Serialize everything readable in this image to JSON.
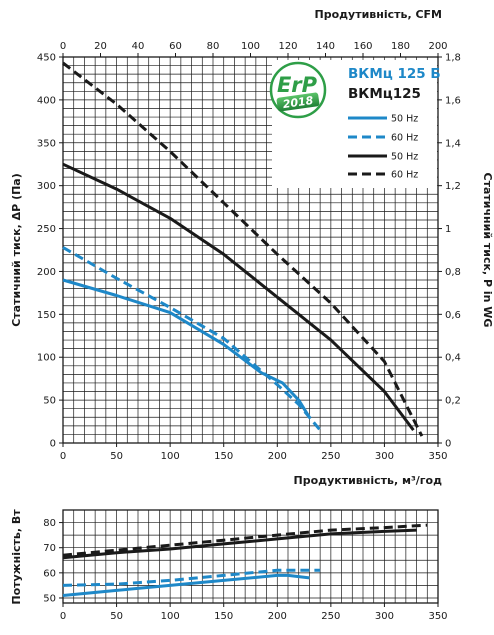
{
  "chart_data": [
    {
      "type": "line",
      "title": "",
      "xlabel": "Продуктивність, м³/год",
      "ylabel": "Статичний тиск, ΔP (Па)",
      "x2label": "Продутивність, CFM",
      "y2label": "Статичний тиск, P in WG",
      "xlim": [
        0,
        350
      ],
      "ylim": [
        0,
        450
      ],
      "x2lim": [
        0,
        200
      ],
      "y2lim": [
        0,
        1.8
      ],
      "x_ticks": [
        "0",
        "50",
        "100",
        "150",
        "200",
        "250",
        "300",
        "350"
      ],
      "y_ticks": [
        "0",
        "50",
        "100",
        "150",
        "200",
        "250",
        "300",
        "350",
        "400",
        "450"
      ],
      "x2_ticks": [
        "0",
        "20",
        "40",
        "60",
        "80",
        "100",
        "120",
        "140",
        "160",
        "180",
        "200"
      ],
      "y2_ticks": [
        "0",
        "0,2",
        "0,4",
        "0,6",
        "0,8",
        "1",
        "1,2",
        "1,4",
        "1,6",
        "1,8"
      ],
      "grid": true,
      "legend_position": "top-right",
      "models": [
        {
          "name": "ВКМц 125 Б",
          "color": "#1e88c8"
        },
        {
          "name": "ВКМц125",
          "color": "#1a1a1a"
        }
      ],
      "badge": {
        "text": "ErP",
        "year": "2018",
        "color": "#2e9e47"
      },
      "series": [
        {
          "name": "50 Hz",
          "model": "ВКМц 125 Б",
          "color": "#1e88c8",
          "dash": "solid",
          "x": [
            0,
            50,
            100,
            150,
            185,
            205,
            220,
            230
          ],
          "y": [
            190,
            172,
            152,
            115,
            82,
            70,
            50,
            30
          ]
        },
        {
          "name": "60 Hz",
          "model": "ВКМц 125 Б",
          "color": "#1e88c8",
          "dash": "dashed",
          "x": [
            0,
            50,
            100,
            150,
            200,
            220,
            240
          ],
          "y": [
            228,
            192,
            158,
            122,
            68,
            45,
            15
          ]
        },
        {
          "name": "50 Hz",
          "model": "ВКМц125",
          "color": "#1a1a1a",
          "dash": "solid",
          "x": [
            0,
            50,
            100,
            150,
            200,
            250,
            300,
            327
          ],
          "y": [
            325,
            296,
            262,
            220,
            170,
            120,
            60,
            15
          ]
        },
        {
          "name": "60 Hz",
          "model": "ВКМц125",
          "color": "#1a1a1a",
          "dash": "dashed",
          "x": [
            0,
            50,
            100,
            150,
            200,
            250,
            300,
            335
          ],
          "y": [
            443,
            395,
            340,
            280,
            220,
            163,
            95,
            8
          ]
        }
      ]
    },
    {
      "type": "line",
      "title": "",
      "xlabel": "",
      "ylabel": "Потужність, Вт",
      "xlim": [
        0,
        350
      ],
      "ylim": [
        48,
        85
      ],
      "x_ticks": [
        "0",
        "50",
        "100",
        "150",
        "200",
        "250",
        "300",
        "350"
      ],
      "y_ticks": [
        "50",
        "60",
        "70",
        "80"
      ],
      "y_tick_values": [
        50,
        60,
        70,
        80
      ],
      "grid": true,
      "series": [
        {
          "name": "50 Hz",
          "model": "ВКМц 125 Б",
          "color": "#1e88c8",
          "dash": "solid",
          "x": [
            0,
            50,
            100,
            150,
            200,
            210,
            230
          ],
          "y": [
            51,
            53,
            55,
            57,
            59,
            59,
            58
          ]
        },
        {
          "name": "60 Hz",
          "model": "ВКМц 125 Б",
          "color": "#1e88c8",
          "dash": "dashed",
          "x": [
            0,
            50,
            100,
            150,
            200,
            220,
            240
          ],
          "y": [
            55,
            55.5,
            57,
            59,
            61,
            61,
            61
          ]
        },
        {
          "name": "50 Hz",
          "model": "ВКМц125",
          "color": "#1a1a1a",
          "dash": "solid",
          "x": [
            0,
            50,
            100,
            150,
            200,
            250,
            300,
            330
          ],
          "y": [
            66,
            68,
            69.5,
            71.5,
            73.5,
            75.5,
            76.5,
            77
          ]
        },
        {
          "name": "60 Hz",
          "model": "ВКМц125",
          "color": "#1a1a1a",
          "dash": "dashed",
          "x": [
            0,
            50,
            100,
            150,
            200,
            250,
            300,
            340
          ],
          "y": [
            67,
            69,
            71,
            73,
            75,
            77,
            78,
            79
          ]
        }
      ]
    }
  ]
}
